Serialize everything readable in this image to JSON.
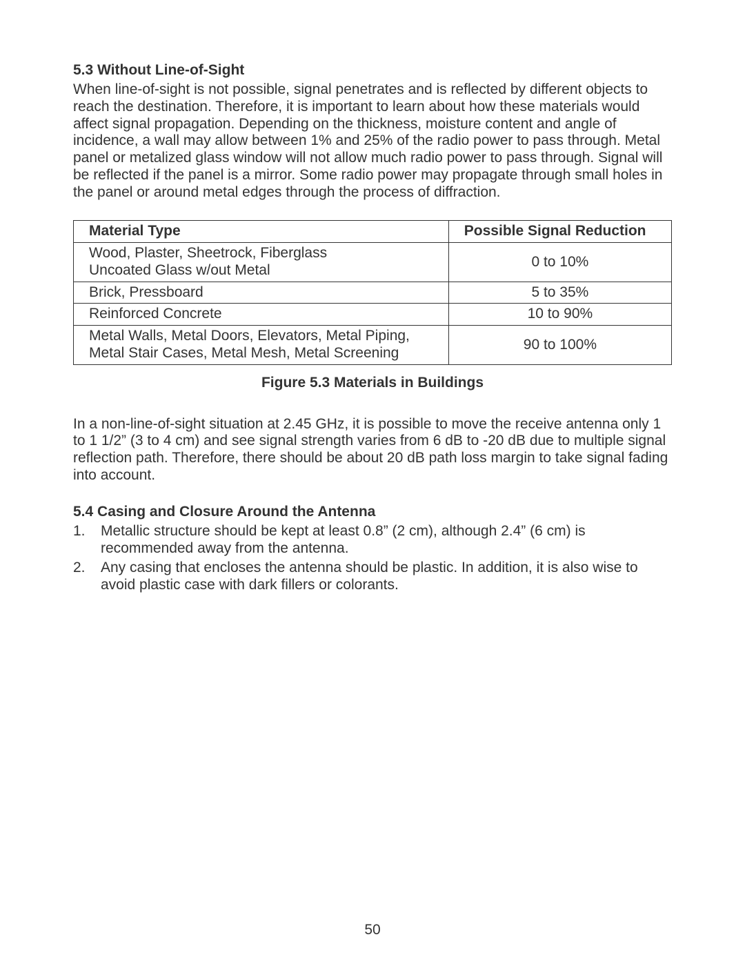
{
  "section53": {
    "heading": "5.3  Without Line-of-Sight",
    "body": "When line-of-sight is not possible, signal penetrates and is reflected by different objects to reach the destination. Therefore, it is important to learn about how these materials would affect signal propagation. Depending on the thickness, moisture content and angle of incidence, a wall may allow between 1% and 25% of the radio power to pass through. Metal panel or metalized glass window will not allow much radio power to pass through. Signal will be reflected if the panel is a mirror. Some radio power may propagate through small holes in the panel or around metal edges through the process of diffraction."
  },
  "table": {
    "columns": [
      "Material Type",
      "Possible Signal Reduction"
    ],
    "rows": [
      {
        "material_line1": "Wood, Plaster, Sheetrock, Fiberglass",
        "material_line2": "Uncoated Glass w/out Metal",
        "reduction": "0 to 10%"
      },
      {
        "material_line1": "Brick, Pressboard",
        "material_line2": "",
        "reduction": "5 to 35%"
      },
      {
        "material_line1": "Reinforced Concrete",
        "material_line2": "",
        "reduction": "10 to 90%"
      },
      {
        "material_line1": "Metal Walls, Metal Doors, Elevators, Metal Piping,",
        "material_line2": "Metal Stair Cases, Metal Mesh, Metal Screening",
        "reduction": "90 to 100%"
      }
    ]
  },
  "figure_caption": "Figure 5.3  Materials in Buildings",
  "para_after_table": "In a non-line-of-sight situation at 2.45 GHz, it is possible to move the receive antenna only 1 to 1 1/2” (3 to 4 cm) and see signal strength varies from 6 dB to -20 dB due to multiple signal reflection path. Therefore, there should be about 20 dB path loss margin to take signal fading into account.",
  "section54": {
    "heading": "5.4  Casing and Closure Around the Antenna",
    "items": [
      {
        "num": "1.",
        "text": "Metallic structure should be kept at least 0.8” (2 cm), although 2.4” (6 cm) is recommended away from the antenna."
      },
      {
        "num": "2.",
        "text": "Any casing that encloses the antenna should be plastic. In addition, it is also wise to avoid plastic case with dark fillers or colorants."
      }
    ]
  },
  "page_number": "50"
}
